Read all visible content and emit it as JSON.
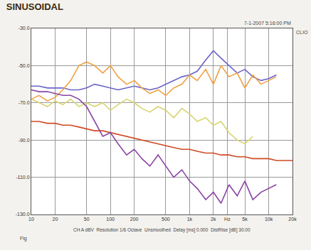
{
  "chart_data": {
    "type": "line",
    "title": "SINUSOIDAL",
    "annotations": [
      "7-1-2007 5:16:00 PM",
      "CLIO",
      "CH A dBV  Resolution 1/6 Octave  Unsmoothed  Delay [ms] 0.000  DistRise [dB] 30.00",
      "Fig"
    ],
    "log": "x",
    "grid": true,
    "x": [
      10,
      12.5,
      16,
      20,
      25,
      31.5,
      40,
      50,
      63,
      80,
      100,
      125,
      160,
      200,
      250,
      315,
      400,
      500,
      630,
      800,
      1000,
      1250,
      1600,
      2000,
      2500,
      3150,
      4000,
      5000,
      6300,
      8000,
      10000,
      12500,
      16000,
      20000
    ],
    "xlim": [
      10,
      20000
    ],
    "xticks": [
      10,
      20,
      50,
      100,
      200,
      500,
      {
        "value": 1000,
        "label": "1k"
      },
      {
        "value": 2000,
        "label": "2k"
      },
      {
        "value": 3000,
        "label": "Hz"
      },
      {
        "value": 5000,
        "label": "5k"
      },
      {
        "value": 10000,
        "label": "10k"
      },
      {
        "value": 20000,
        "label": "20k"
      }
    ],
    "ylim": [
      -130,
      -30
    ],
    "yticks": [
      {
        "value": -30,
        "label": "-30.0"
      },
      {
        "value": -50,
        "label": "-50.0"
      },
      {
        "value": -70,
        "label": "-70.0"
      },
      {
        "value": -90,
        "label": "-90.0"
      },
      {
        "value": -110,
        "label": "-110.0"
      },
      {
        "value": -130,
        "label": "-130.0"
      }
    ],
    "series": [
      {
        "color": "#6a64c8",
        "values": [
          -61,
          -61,
          -62,
          -62,
          -62,
          -63,
          -63,
          -62,
          -60,
          -61,
          -62,
          -63,
          -62,
          -61,
          -62,
          -63,
          -62,
          -60,
          -58,
          -56,
          -55,
          -53,
          -47,
          -42,
          -46,
          -50,
          -54,
          -52,
          -56,
          -58,
          -57,
          -55,
          null,
          null
        ]
      },
      {
        "color": "#f0a040",
        "values": [
          -68,
          -66,
          -69,
          -67,
          -63,
          -58,
          -50,
          -48,
          -50,
          -54,
          -50,
          -56,
          -60,
          -58,
          -62,
          -65,
          -63,
          -66,
          -62,
          -60,
          -55,
          -58,
          -52,
          -60,
          -50,
          -56,
          -54,
          -62,
          -55,
          -60,
          -58,
          -56,
          null,
          null
        ]
      },
      {
        "color": "#d8d470",
        "values": [
          -68,
          -70,
          -72,
          -69,
          -71,
          -68,
          -72,
          -70,
          -72,
          -70,
          -74,
          -71,
          -68,
          -70,
          -73,
          -75,
          -72,
          -74,
          -78,
          -73,
          -76,
          -80,
          -78,
          -82,
          -80,
          -86,
          -90,
          -92,
          -88,
          null,
          null,
          null,
          null,
          null
        ]
      },
      {
        "color": "#d04a24",
        "values": [
          -80,
          -80,
          -81,
          -81,
          -82,
          -82,
          -83,
          -84,
          -85,
          -85,
          -86,
          -87,
          -88,
          -89,
          -90,
          -91,
          -92,
          -93,
          -94,
          -95,
          -95,
          -96,
          -97,
          -97,
          -98,
          -98,
          -99,
          -99,
          -100,
          -100,
          -100,
          -101,
          -101,
          -101
        ]
      },
      {
        "color": "#8a44a4",
        "values": [
          -63,
          -64,
          -64,
          -65,
          -66,
          -66,
          -68,
          -72,
          -80,
          -88,
          -86,
          -92,
          -98,
          -95,
          -100,
          -104,
          -98,
          -104,
          -110,
          -106,
          -112,
          -116,
          -122,
          -118,
          -124,
          -114,
          -120,
          -112,
          -122,
          -118,
          -116,
          -114,
          null,
          null
        ]
      }
    ]
  }
}
